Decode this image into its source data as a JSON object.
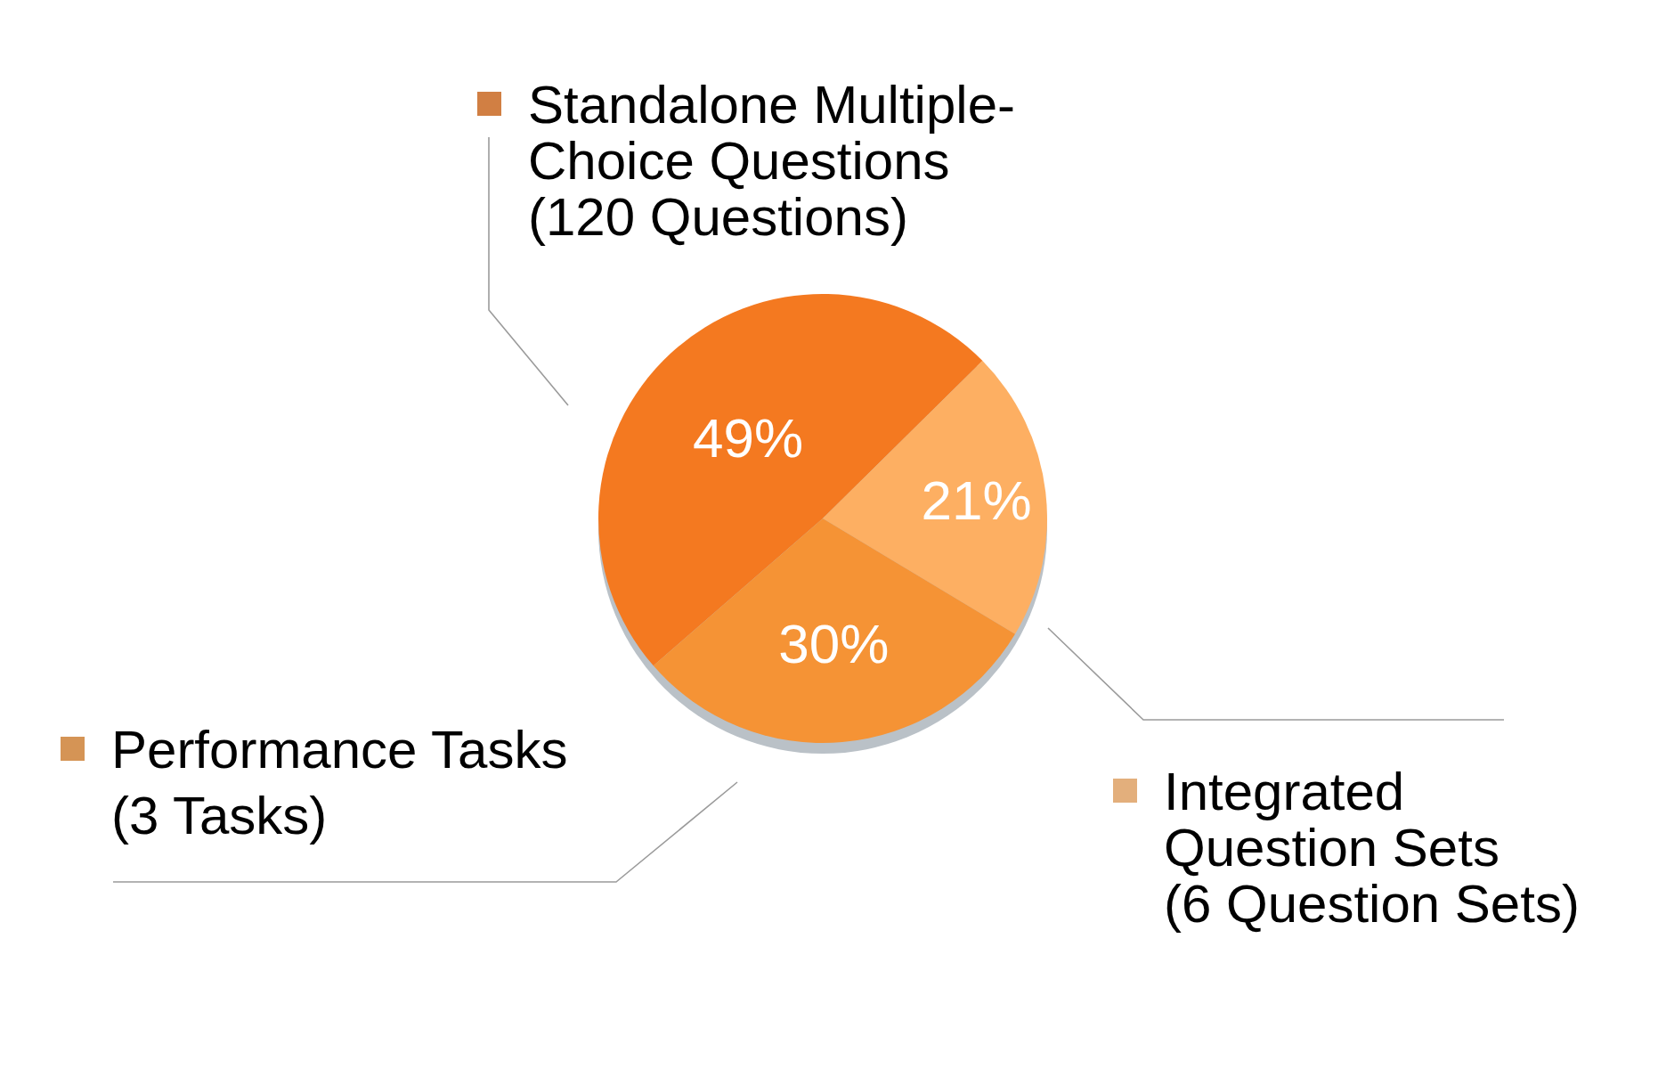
{
  "chart_data": {
    "type": "pie",
    "categories": [
      "Standalone Multiple-Choice Questions (120 Questions)",
      "Integrated Question Sets (6 Question Sets)",
      "Performance Tasks (3 Tasks)"
    ],
    "values": [
      49,
      21,
      30
    ],
    "colors": [
      "#f47920",
      "#fdaf62",
      "#f59335"
    ],
    "value_labels": [
      "49%",
      "21%",
      "30%"
    ]
  }
}
